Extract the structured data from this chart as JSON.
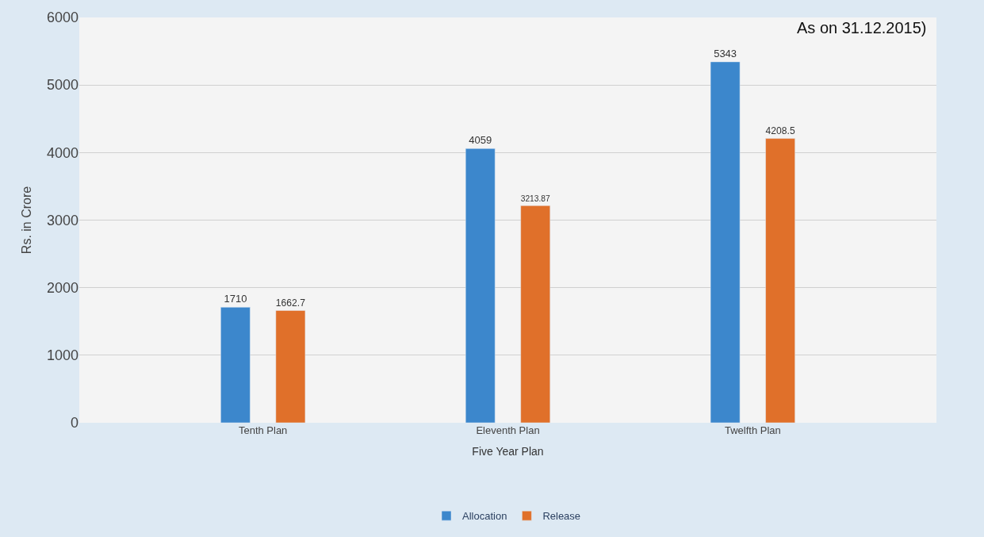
{
  "chart_data": {
    "type": "bar",
    "xlabel": "Five Year Plan",
    "ylabel": "Rs. in Crore",
    "categories": [
      "Tenth Plan",
      "Eleventh Plan",
      "Twelfth Plan"
    ],
    "series": [
      {
        "name": "Allocation",
        "color": "#3c87cc",
        "values": [
          1710,
          4059,
          5343
        ]
      },
      {
        "name": "Release",
        "color": "#e0702a",
        "values": [
          1662.7,
          3213.87,
          4208.5
        ]
      }
    ],
    "data_labels": true,
    "ylim": [
      0,
      6000
    ],
    "yticks": [
      0,
      1000,
      2000,
      3000,
      4000,
      5000,
      6000
    ],
    "grid": "y",
    "legend": "bottom",
    "annotations": [
      "As on 31.12.2015)"
    ]
  }
}
